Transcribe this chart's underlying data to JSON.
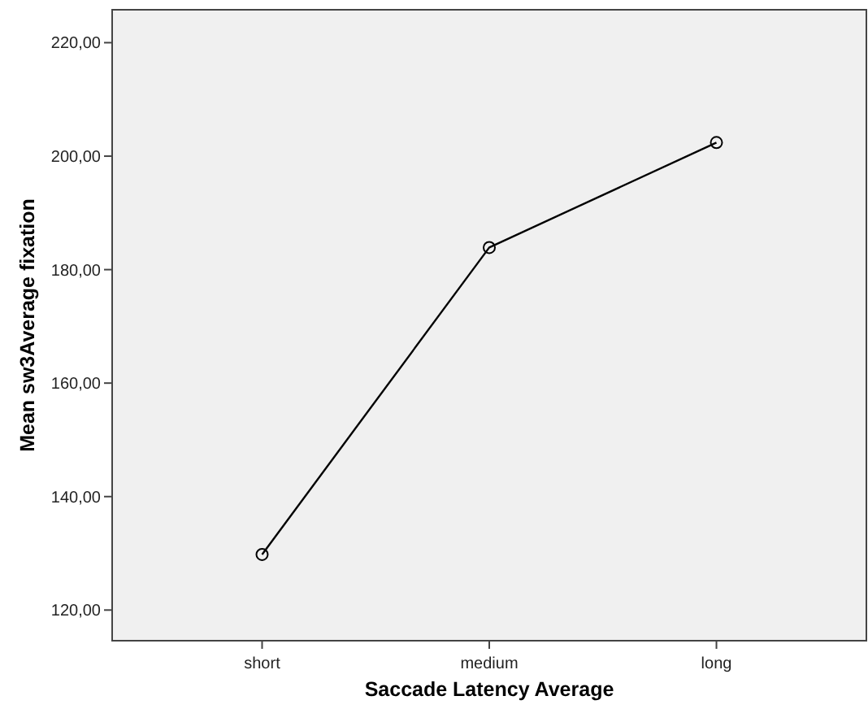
{
  "chart_data": {
    "type": "line",
    "xlabel": "Saccade Latency Average",
    "ylabel": "Mean sw3Average fixation",
    "categories": [
      "short",
      "medium",
      "long"
    ],
    "series": [
      {
        "color": "#000000",
        "values": [
          129.8,
          183.9,
          202.4
        ]
      }
    ],
    "ylim": [
      114.6,
      225.8
    ],
    "yticks": [
      {
        "value": 120,
        "label": "120,00"
      },
      {
        "value": 140,
        "label": "140,00"
      },
      {
        "value": 160,
        "label": "160,00"
      },
      {
        "value": 180,
        "label": "180,00"
      },
      {
        "value": 200,
        "label": "200,00"
      },
      {
        "value": 220,
        "label": "220,00"
      }
    ],
    "grid": false,
    "marker": "circle",
    "line_style": "solid"
  }
}
